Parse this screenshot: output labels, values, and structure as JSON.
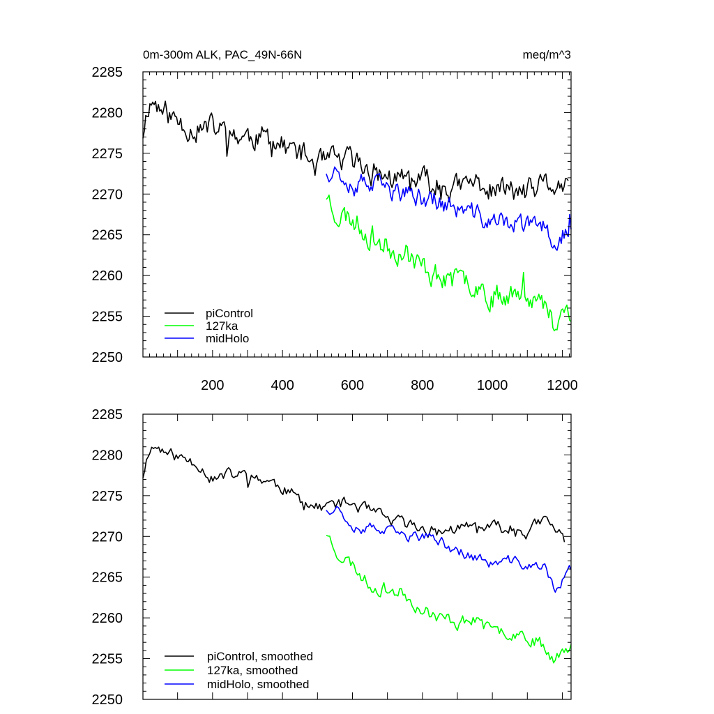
{
  "figure": {
    "title_left": "0m-300m ALK, PAC_49N-66N",
    "title_right": "meq/m^3"
  },
  "chart_data": [
    {
      "type": "line",
      "panel": "top",
      "title": "0m-300m ALK, PAC_49N-66N",
      "units": "meq/m^3",
      "xlim": [
        1,
        1225
      ],
      "ylim": [
        2250,
        2285
      ],
      "x_ticks": [
        200,
        400,
        600,
        800,
        1000,
        1200
      ],
      "x_tick_labels": [
        "200",
        "400",
        "600",
        "800",
        "1000",
        "1200"
      ],
      "y_ticks": [
        2250,
        2255,
        2260,
        2265,
        2270,
        2275,
        2280,
        2285
      ],
      "y_tick_labels": [
        "2250",
        "2255",
        "2260",
        "2265",
        "2270",
        "2275",
        "2280",
        "2285"
      ],
      "legend_position": "bottom-left",
      "series": [
        {
          "name": "piControl",
          "color": "#000000",
          "x_range": [
            1,
            1220
          ],
          "anchors": [
            [
              1,
              2277.5
            ],
            [
              15,
              2281
            ],
            [
              30,
              2281.5
            ],
            [
              60,
              2280
            ],
            [
              100,
              2279
            ],
            [
              150,
              2278
            ],
            [
              200,
              2278
            ],
            [
              250,
              2277.5
            ],
            [
              300,
              2277
            ],
            [
              350,
              2277
            ],
            [
              400,
              2276
            ],
            [
              450,
              2275
            ],
            [
              500,
              2273.5
            ],
            [
              550,
              2274
            ],
            [
              600,
              2274
            ],
            [
              650,
              2273
            ],
            [
              700,
              2272
            ],
            [
              750,
              2271.5
            ],
            [
              800,
              2271.5
            ],
            [
              850,
              2271
            ],
            [
              900,
              2270.5
            ],
            [
              950,
              2271.5
            ],
            [
              1000,
              2270.5
            ],
            [
              1050,
              2270.5
            ],
            [
              1100,
              2270
            ],
            [
              1150,
              2271
            ],
            [
              1200,
              2271
            ],
            [
              1220,
              2270
            ]
          ],
          "noise": 1.6,
          "seed": 11
        },
        {
          "name": "127ka",
          "color": "#00ff00",
          "x_range": [
            525,
            1225
          ],
          "anchors": [
            [
              525,
              2270
            ],
            [
              560,
              2267.5
            ],
            [
              600,
              2267
            ],
            [
              650,
              2265
            ],
            [
              700,
              2263.5
            ],
            [
              750,
              2263
            ],
            [
              800,
              2261
            ],
            [
              850,
              2260
            ],
            [
              900,
              2259
            ],
            [
              950,
              2259.5
            ],
            [
              1000,
              2257.5
            ],
            [
              1050,
              2258
            ],
            [
              1100,
              2258
            ],
            [
              1150,
              2256
            ],
            [
              1180,
              2254
            ],
            [
              1200,
              2256
            ],
            [
              1225,
              2256
            ]
          ],
          "noise": 1.6,
          "seed": 23
        },
        {
          "name": "midHolo",
          "color": "#0000ff",
          "x_range": [
            525,
            1225
          ],
          "anchors": [
            [
              525,
              2273
            ],
            [
              560,
              2273
            ],
            [
              600,
              2271.5
            ],
            [
              650,
              2271
            ],
            [
              700,
              2270.5
            ],
            [
              750,
              2270
            ],
            [
              800,
              2269.5
            ],
            [
              850,
              2269
            ],
            [
              900,
              2268
            ],
            [
              950,
              2267.5
            ],
            [
              1000,
              2266.5
            ],
            [
              1050,
              2266.5
            ],
            [
              1100,
              2266
            ],
            [
              1150,
              2266
            ],
            [
              1180,
              2264
            ],
            [
              1200,
              2265
            ],
            [
              1225,
              2266
            ]
          ],
          "noise": 1.3,
          "seed": 37
        }
      ]
    },
    {
      "type": "line",
      "panel": "bottom",
      "xlim": [
        1,
        1225
      ],
      "ylim": [
        2250,
        2285
      ],
      "y_ticks": [
        2250,
        2255,
        2260,
        2265,
        2270,
        2275,
        2280,
        2285
      ],
      "y_tick_labels": [
        "2250",
        "2255",
        "2260",
        "2265",
        "2270",
        "2275",
        "2280",
        "2285"
      ],
      "legend_position": "bottom-left",
      "series": [
        {
          "name": "piControl, smoothed",
          "color": "#000000",
          "x_range": [
            1,
            1210
          ],
          "anchors": [
            [
              1,
              2277.5
            ],
            [
              20,
              2281
            ],
            [
              40,
              2281
            ],
            [
              80,
              2280
            ],
            [
              120,
              2279.5
            ],
            [
              160,
              2279
            ],
            [
              200,
              2277
            ],
            [
              250,
              2277.5
            ],
            [
              300,
              2277.5
            ],
            [
              350,
              2277
            ],
            [
              400,
              2276
            ],
            [
              450,
              2274.5
            ],
            [
              500,
              2273.5
            ],
            [
              550,
              2274
            ],
            [
              600,
              2274
            ],
            [
              650,
              2273
            ],
            [
              700,
              2272
            ],
            [
              750,
              2271.5
            ],
            [
              800,
              2271
            ],
            [
              850,
              2270.5
            ],
            [
              900,
              2271
            ],
            [
              950,
              2271
            ],
            [
              1000,
              2271
            ],
            [
              1050,
              2271
            ],
            [
              1100,
              2270.5
            ],
            [
              1150,
              2272
            ],
            [
              1200,
              2270
            ],
            [
              1210,
              2269.5
            ]
          ],
          "noise": 0.8,
          "seed": 11
        },
        {
          "name": "127ka, smoothed",
          "color": "#00ff00",
          "x_range": [
            525,
            1225
          ],
          "anchors": [
            [
              525,
              2270.5
            ],
            [
              560,
              2268
            ],
            [
              600,
              2266.5
            ],
            [
              650,
              2264
            ],
            [
              700,
              2263.5
            ],
            [
              750,
              2263
            ],
            [
              800,
              2261
            ],
            [
              850,
              2260
            ],
            [
              900,
              2259.5
            ],
            [
              950,
              2260
            ],
            [
              1000,
              2258
            ],
            [
              1050,
              2258.5
            ],
            [
              1100,
              2258
            ],
            [
              1150,
              2256.5
            ],
            [
              1180,
              2255
            ],
            [
              1200,
              2256
            ],
            [
              1225,
              2256.5
            ]
          ],
          "noise": 0.9,
          "seed": 23
        },
        {
          "name": "midHolo, smoothed",
          "color": "#0000ff",
          "x_range": [
            525,
            1225
          ],
          "anchors": [
            [
              525,
              2273.5
            ],
            [
              560,
              2273.5
            ],
            [
              600,
              2271.5
            ],
            [
              650,
              2271
            ],
            [
              700,
              2270.5
            ],
            [
              750,
              2270
            ],
            [
              800,
              2270
            ],
            [
              850,
              2269.5
            ],
            [
              900,
              2268
            ],
            [
              950,
              2267.5
            ],
            [
              1000,
              2266.5
            ],
            [
              1050,
              2267
            ],
            [
              1100,
              2266.5
            ],
            [
              1150,
              2266
            ],
            [
              1180,
              2263.5
            ],
            [
              1200,
              2264.5
            ],
            [
              1225,
              2266
            ]
          ],
          "noise": 0.7,
          "seed": 37
        }
      ]
    }
  ]
}
